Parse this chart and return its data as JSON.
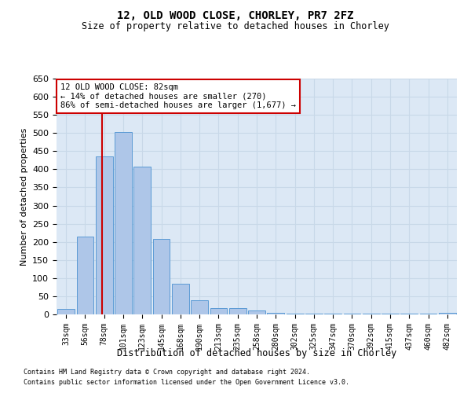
{
  "title": "12, OLD WOOD CLOSE, CHORLEY, PR7 2FZ",
  "subtitle": "Size of property relative to detached houses in Chorley",
  "xlabel": "Distribution of detached houses by size in Chorley",
  "ylabel": "Number of detached properties",
  "footnote1": "Contains HM Land Registry data © Crown copyright and database right 2024.",
  "footnote2": "Contains public sector information licensed under the Open Government Licence v3.0.",
  "categories": [
    "33sqm",
    "56sqm",
    "78sqm",
    "101sqm",
    "123sqm",
    "145sqm",
    "168sqm",
    "190sqm",
    "213sqm",
    "235sqm",
    "258sqm",
    "280sqm",
    "302sqm",
    "325sqm",
    "347sqm",
    "370sqm",
    "392sqm",
    "415sqm",
    "437sqm",
    "460sqm",
    "482sqm"
  ],
  "values": [
    15,
    215,
    435,
    503,
    408,
    207,
    84,
    38,
    18,
    17,
    10,
    5,
    3,
    3,
    3,
    3,
    3,
    3,
    3,
    3,
    5
  ],
  "bar_color": "#aec6e8",
  "bar_edge_color": "#5b9bd5",
  "grid_color": "#c8d8e8",
  "background_color": "#dce8f5",
  "annotation_text_line1": "12 OLD WOOD CLOSE: 82sqm",
  "annotation_text_line2": "← 14% of detached houses are smaller (270)",
  "annotation_text_line3": "86% of semi-detached houses are larger (1,677) →",
  "annotation_box_color": "#ffffff",
  "annotation_box_edge": "#cc0000",
  "red_line_color": "#cc0000",
  "ylim": [
    0,
    650
  ],
  "yticks": [
    0,
    50,
    100,
    150,
    200,
    250,
    300,
    350,
    400,
    450,
    500,
    550,
    600,
    650
  ],
  "red_line_x": 1.88
}
